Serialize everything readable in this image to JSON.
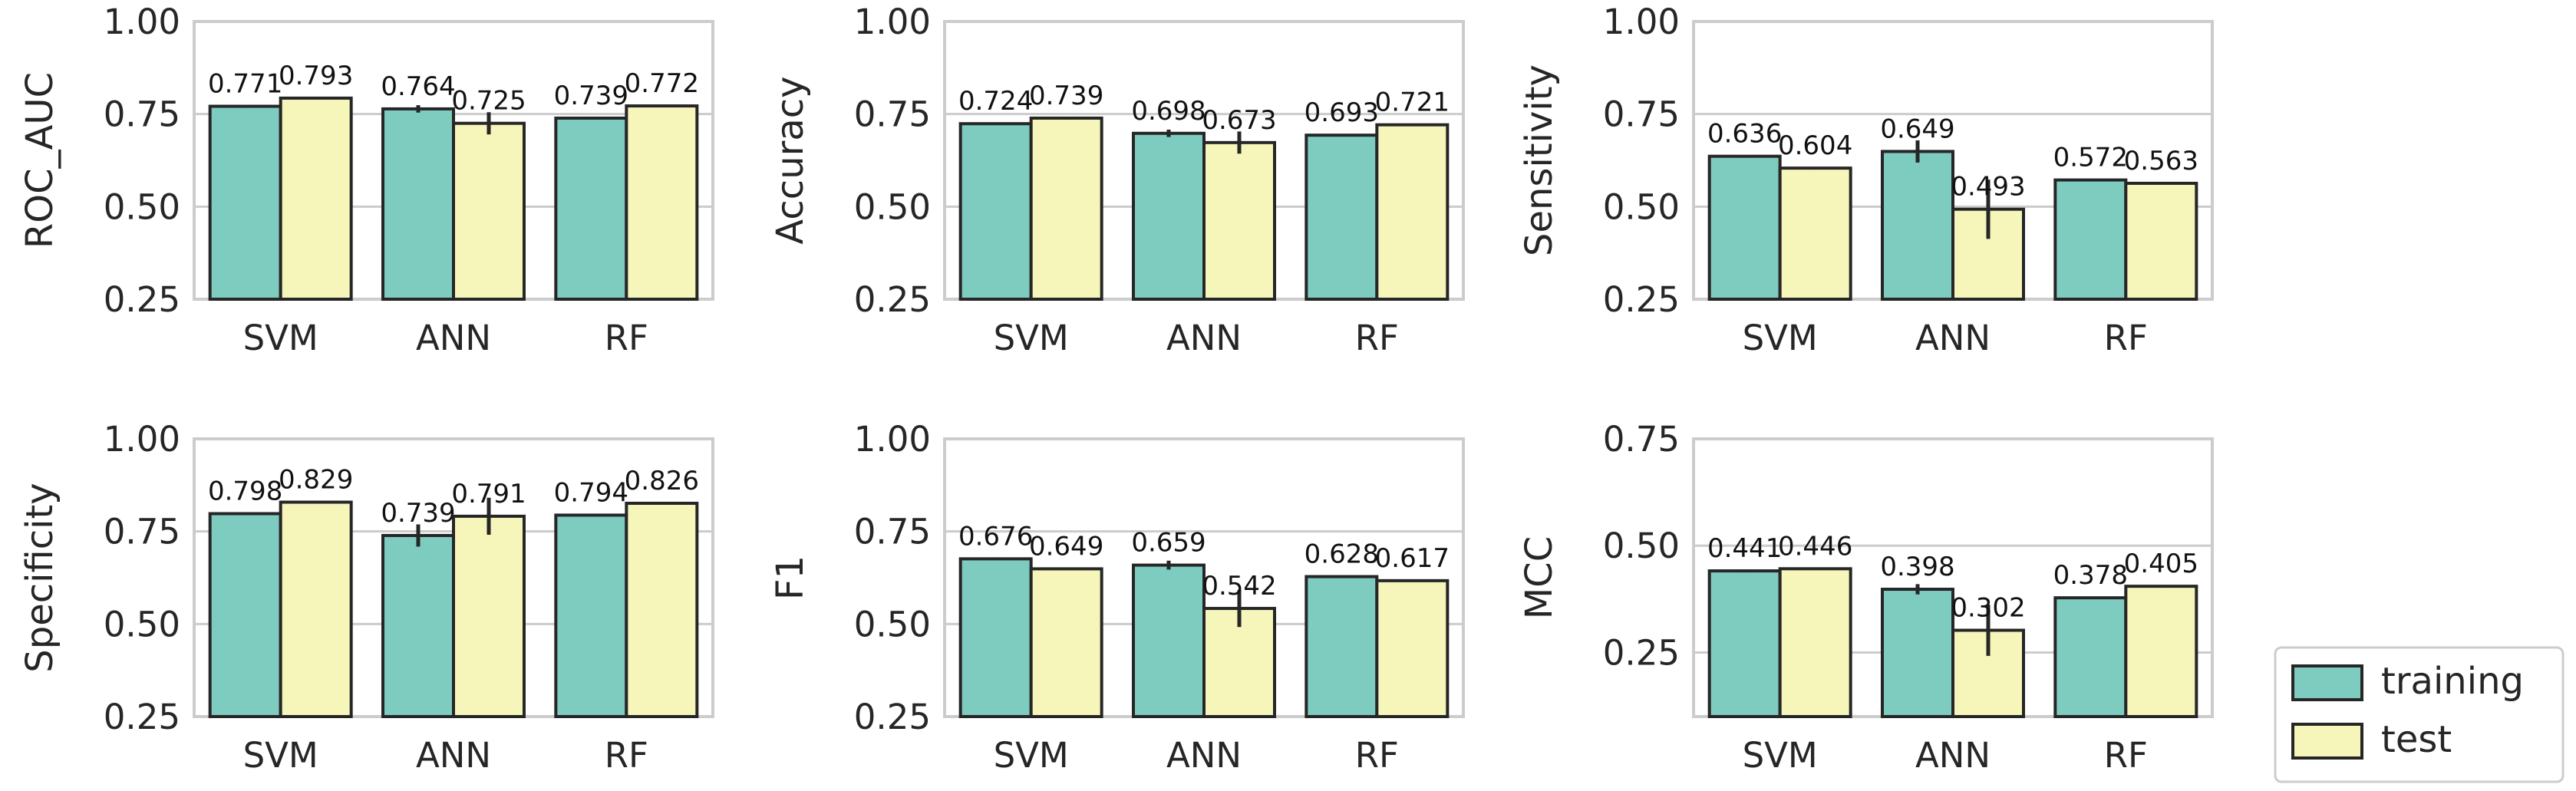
{
  "chart_data": {
    "type": "bar",
    "categories": [
      "SVM",
      "ANN",
      "RF"
    ],
    "series_names": [
      "training",
      "test"
    ],
    "colors": {
      "training": "#7ecbc0",
      "test": "#f6f6bb"
    },
    "legend": {
      "position": "bottom-right",
      "items": [
        {
          "name": "training",
          "color": "#7ecbc0"
        },
        {
          "name": "test",
          "color": "#f6f6bb"
        }
      ]
    },
    "grid": true,
    "panels": [
      {
        "ylabel": "ROC_AUC",
        "ylim": [
          0.25,
          1.0
        ],
        "yticks": [
          "0.25",
          "0.50",
          "0.75",
          "1.00"
        ],
        "ytick_values": [
          0.25,
          0.5,
          0.75,
          1.0
        ],
        "series": [
          {
            "name": "training",
            "values": [
              0.771,
              0.764,
              0.739
            ],
            "labels": [
              "0.771",
              "0.764",
              "0.739"
            ],
            "errors": [
              0.003,
              0.01,
              0.004
            ]
          },
          {
            "name": "test",
            "values": [
              0.793,
              0.725,
              0.772
            ],
            "labels": [
              "0.793",
              "0.725",
              "0.772"
            ],
            "errors": [
              0.003,
              0.03,
              0.003
            ]
          }
        ]
      },
      {
        "ylabel": "Accuracy",
        "ylim": [
          0.25,
          1.0
        ],
        "yticks": [
          "0.25",
          "0.50",
          "0.75",
          "1.00"
        ],
        "ytick_values": [
          0.25,
          0.5,
          0.75,
          1.0
        ],
        "series": [
          {
            "name": "training",
            "values": [
              0.724,
              0.698,
              0.693
            ],
            "labels": [
              "0.724",
              "0.698",
              "0.693"
            ],
            "errors": [
              0.003,
              0.01,
              0.003
            ]
          },
          {
            "name": "test",
            "values": [
              0.739,
              0.673,
              0.721
            ],
            "labels": [
              "0.739",
              "0.673",
              "0.721"
            ],
            "errors": [
              0.003,
              0.03,
              0.003
            ]
          }
        ]
      },
      {
        "ylabel": "Sensitivity",
        "ylim": [
          0.25,
          1.0
        ],
        "yticks": [
          "0.25",
          "0.50",
          "0.75",
          "1.00"
        ],
        "ytick_values": [
          0.25,
          0.5,
          0.75,
          1.0
        ],
        "series": [
          {
            "name": "training",
            "values": [
              0.636,
              0.649,
              0.572
            ],
            "labels": [
              "0.636",
              "0.649",
              "0.572"
            ],
            "errors": [
              0.003,
              0.03,
              0.003
            ]
          },
          {
            "name": "test",
            "values": [
              0.604,
              0.493,
              0.563
            ],
            "labels": [
              "0.604",
              "0.493",
              "0.563"
            ],
            "errors": [
              0.003,
              0.08,
              0.003
            ]
          }
        ]
      },
      {
        "ylabel": "Specificity",
        "ylim": [
          0.25,
          1.0
        ],
        "yticks": [
          "0.25",
          "0.50",
          "0.75",
          "1.00"
        ],
        "ytick_values": [
          0.25,
          0.5,
          0.75,
          1.0
        ],
        "series": [
          {
            "name": "training",
            "values": [
              0.798,
              0.739,
              0.794
            ],
            "labels": [
              "0.798",
              "0.739",
              "0.794"
            ],
            "errors": [
              0.003,
              0.03,
              0.003
            ]
          },
          {
            "name": "test",
            "values": [
              0.829,
              0.791,
              0.826
            ],
            "labels": [
              "0.829",
              "0.791",
              "0.826"
            ],
            "errors": [
              0.003,
              0.05,
              0.003
            ]
          }
        ]
      },
      {
        "ylabel": "F1",
        "ylim": [
          0.25,
          1.0
        ],
        "yticks": [
          "0.25",
          "0.50",
          "0.75",
          "1.00"
        ],
        "ytick_values": [
          0.25,
          0.5,
          0.75,
          1.0
        ],
        "series": [
          {
            "name": "training",
            "values": [
              0.676,
              0.659,
              0.628
            ],
            "labels": [
              "0.676",
              "0.659",
              "0.628"
            ],
            "errors": [
              0.003,
              0.012,
              0.003
            ]
          },
          {
            "name": "test",
            "values": [
              0.649,
              0.542,
              0.617
            ],
            "labels": [
              "0.649",
              "0.542",
              "0.617"
            ],
            "errors": [
              0.003,
              0.05,
              0.003
            ]
          }
        ]
      },
      {
        "ylabel": "MCC",
        "ylim": [
          0.1,
          0.75
        ],
        "yticks": [
          "0.25",
          "0.50",
          "0.75"
        ],
        "ytick_values": [
          0.25,
          0.5,
          0.75
        ],
        "series": [
          {
            "name": "training",
            "values": [
              0.441,
              0.398,
              0.378
            ],
            "labels": [
              "0.441",
              "0.398",
              "0.378"
            ],
            "errors": [
              0.003,
              0.012,
              0.003
            ]
          },
          {
            "name": "test",
            "values": [
              0.446,
              0.302,
              0.405
            ],
            "labels": [
              "0.446",
              "0.302",
              "0.405"
            ],
            "errors": [
              0.003,
              0.06,
              0.003
            ]
          }
        ]
      }
    ]
  }
}
